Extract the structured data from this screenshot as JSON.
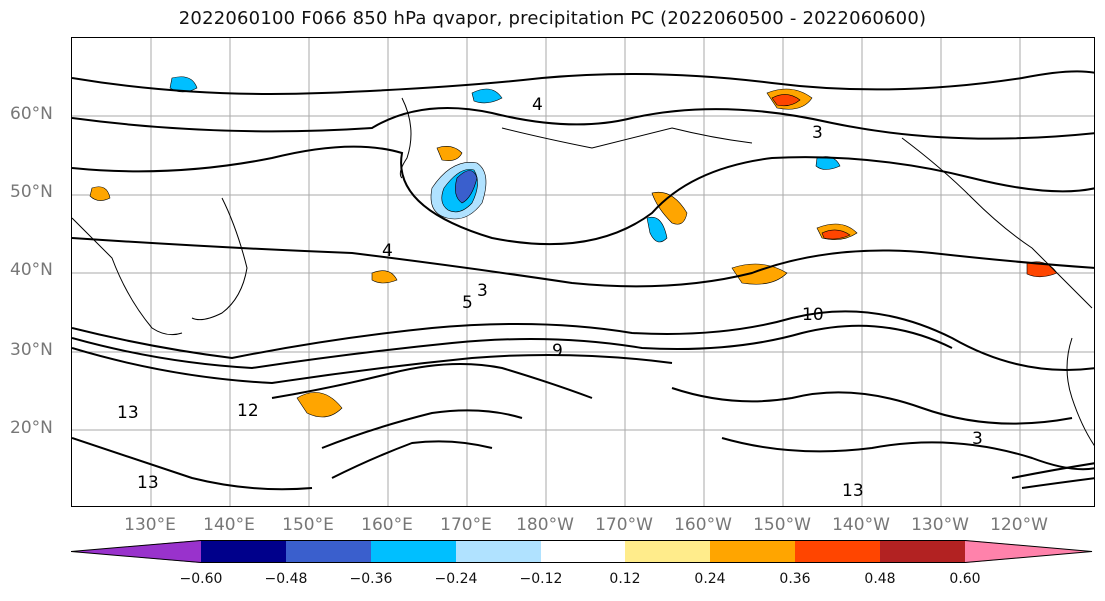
{
  "title": "2022060100 F066 850 hPa qvapor, precipitation PC (2022060500 - 2022060600)",
  "latitude_labels": [
    "60°N",
    "50°N",
    "40°N",
    "30°N",
    "20°N"
  ],
  "longitude_labels": [
    "130°E",
    "140°E",
    "150°E",
    "160°E",
    "170°E",
    "180°W",
    "170°W",
    "160°W",
    "150°W",
    "140°W",
    "130°W",
    "120°W"
  ],
  "contour_labels": [
    "3",
    "4",
    "5",
    "9",
    "10",
    "12",
    "13"
  ],
  "colorbar": {
    "colors": [
      "#9932CC",
      "#00008B",
      "#3A5FCD",
      "#00BFFF",
      "#B0E2FF",
      "#FFFFFF",
      "#FFEC8B",
      "#FFA500",
      "#FF4500",
      "#B22222",
      "#FF82AB"
    ],
    "tick_labels": [
      "−0.60",
      "−0.48",
      "−0.36",
      "−0.24",
      "−0.12",
      "0.12",
      "0.24",
      "0.36",
      "0.48",
      "0.60"
    ]
  }
}
